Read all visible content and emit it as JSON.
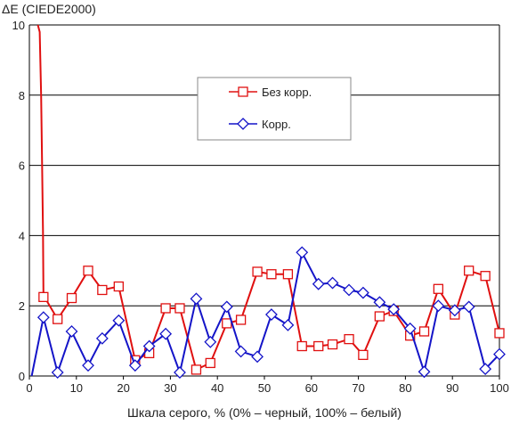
{
  "chart_data": {
    "type": "line",
    "ylabel": "ΔE (CIEDE2000)",
    "xlabel": "Шкала серого, % (0% – черный, 100% – белый)",
    "xlim": [
      0,
      100
    ],
    "ylim": [
      0,
      10
    ],
    "x_ticks": [
      "0",
      "10",
      "20",
      "30",
      "40",
      "50",
      "60",
      "70",
      "80",
      "90",
      "100"
    ],
    "y_ticks": [
      "0",
      "2",
      "4",
      "6",
      "8",
      "10"
    ],
    "grid": "horizontal",
    "legend_position": "upper-center",
    "series": [
      {
        "name": "Без корр.",
        "color": "#e01010",
        "marker": "square",
        "curve": [
          [
            1.8,
            10
          ],
          [
            2.2,
            9.8
          ],
          [
            2.5,
            8.0
          ],
          [
            2.7,
            6.0
          ],
          [
            2.9,
            4.1
          ],
          [
            3.0,
            2.3
          ]
        ],
        "points": [
          [
            3.0,
            2.25
          ],
          [
            6.0,
            1.62
          ],
          [
            9.0,
            2.22
          ],
          [
            12.5,
            3.0
          ],
          [
            15.5,
            2.45
          ],
          [
            19.0,
            2.55
          ],
          [
            22.5,
            0.45
          ],
          [
            25.5,
            0.65
          ],
          [
            29.0,
            1.93
          ],
          [
            32.0,
            1.93
          ],
          [
            35.5,
            0.18
          ],
          [
            38.5,
            0.37
          ],
          [
            42.0,
            1.5
          ],
          [
            45.0,
            1.6
          ],
          [
            48.5,
            2.97
          ],
          [
            51.5,
            2.9
          ],
          [
            55.0,
            2.9
          ],
          [
            58.0,
            0.85
          ],
          [
            61.5,
            0.85
          ],
          [
            64.5,
            0.9
          ],
          [
            68.0,
            1.05
          ],
          [
            71.0,
            0.6
          ],
          [
            74.5,
            1.7
          ],
          [
            77.5,
            1.85
          ],
          [
            81.0,
            1.15
          ],
          [
            84.0,
            1.27
          ],
          [
            87.0,
            2.48
          ],
          [
            90.5,
            1.75
          ],
          [
            93.5,
            3.0
          ],
          [
            97.0,
            2.85
          ],
          [
            100.0,
            1.22
          ]
        ]
      },
      {
        "name": "Корр.",
        "color": "#1414c8",
        "marker": "diamond",
        "curve": [
          [
            0.5,
            0
          ],
          [
            3.0,
            1.67
          ]
        ],
        "points": [
          [
            3.0,
            1.67
          ],
          [
            6.0,
            0.1
          ],
          [
            9.0,
            1.27
          ],
          [
            12.5,
            0.3
          ],
          [
            15.5,
            1.07
          ],
          [
            19.0,
            1.58
          ],
          [
            22.5,
            0.3
          ],
          [
            25.5,
            0.85
          ],
          [
            29.0,
            1.2
          ],
          [
            32.0,
            0.1
          ],
          [
            35.5,
            2.2
          ],
          [
            38.5,
            0.97
          ],
          [
            42.0,
            1.97
          ],
          [
            45.0,
            0.7
          ],
          [
            48.5,
            0.55
          ],
          [
            51.5,
            1.75
          ],
          [
            55.0,
            1.45
          ],
          [
            58.0,
            3.52
          ],
          [
            61.5,
            2.62
          ],
          [
            64.5,
            2.65
          ],
          [
            68.0,
            2.45
          ],
          [
            71.0,
            2.37
          ],
          [
            74.5,
            2.1
          ],
          [
            77.5,
            1.9
          ],
          [
            81.0,
            1.35
          ],
          [
            84.0,
            0.12
          ],
          [
            87.0,
            2.0
          ],
          [
            90.5,
            1.87
          ],
          [
            93.5,
            1.97
          ],
          [
            97.0,
            0.2
          ],
          [
            100.0,
            0.62
          ]
        ]
      }
    ]
  }
}
